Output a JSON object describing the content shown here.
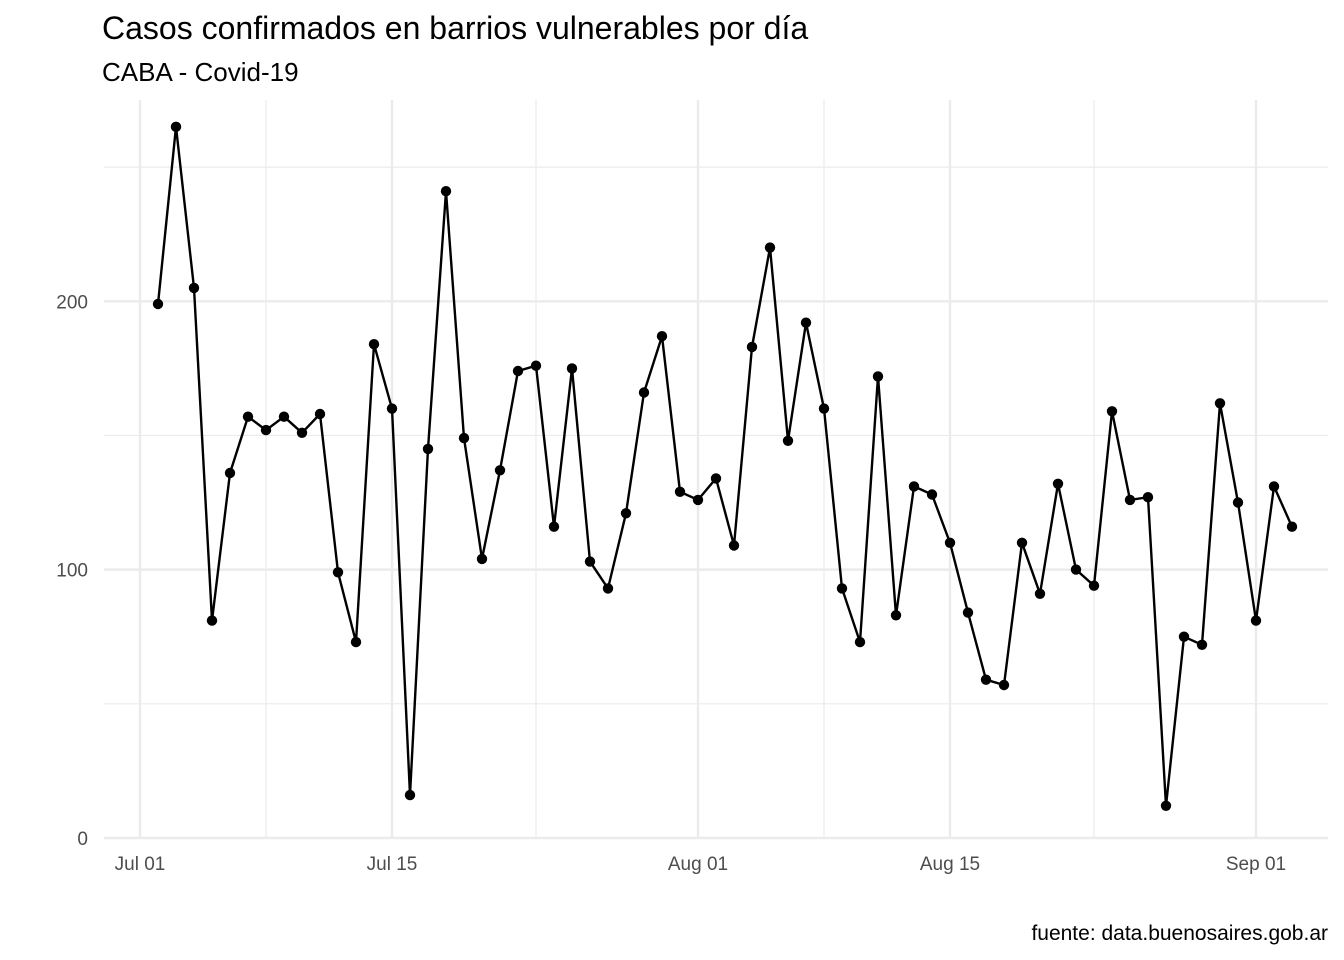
{
  "chart_data": {
    "type": "line",
    "title": "Casos confirmados en barrios vulnerables por día",
    "subtitle": "CABA - Covid-19",
    "caption": "fuente: data.buenosaires.gob.ar",
    "xlabel": "",
    "ylabel": "",
    "x_start": "2020-07-02",
    "x_tick_labels": [
      {
        "date": "2020-07-01",
        "label": "Jul 01"
      },
      {
        "date": "2020-07-15",
        "label": "Jul 15"
      },
      {
        "date": "2020-08-01",
        "label": "Aug 01"
      },
      {
        "date": "2020-08-15",
        "label": "Aug 15"
      },
      {
        "date": "2020-09-01",
        "label": "Sep 01"
      }
    ],
    "x_minor_ticks": [
      "2020-07-08",
      "2020-07-23",
      "2020-08-08",
      "2020-08-23"
    ],
    "xlim": [
      "2020-06-29",
      "2020-09-05"
    ],
    "y_ticks": [
      0,
      100,
      200
    ],
    "y_minor_ticks": [
      50,
      150,
      250
    ],
    "ylim": [
      0,
      275
    ],
    "grid": true,
    "line_color": "#000000",
    "gridline_color": "#ebebeb",
    "values": [
      199,
      265,
      205,
      81,
      136,
      157,
      152,
      157,
      151,
      158,
      99,
      73,
      184,
      160,
      16,
      145,
      241,
      149,
      104,
      137,
      174,
      176,
      116,
      175,
      103,
      93,
      121,
      166,
      187,
      129,
      126,
      134,
      109,
      183,
      220,
      148,
      192,
      160,
      93,
      73,
      172,
      83,
      131,
      128,
      110,
      84,
      59,
      57,
      110,
      91,
      132,
      100,
      94,
      159,
      126,
      127,
      12,
      75,
      72,
      162,
      125,
      81,
      131,
      116
    ]
  }
}
